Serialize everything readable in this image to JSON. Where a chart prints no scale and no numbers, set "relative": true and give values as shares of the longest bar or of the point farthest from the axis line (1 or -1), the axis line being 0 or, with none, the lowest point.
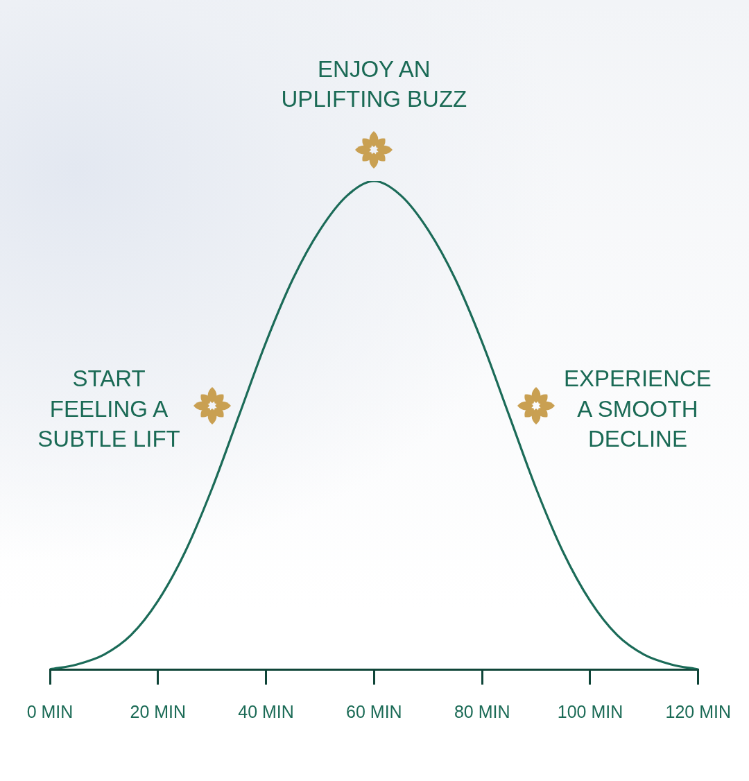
{
  "chart_data": {
    "type": "line",
    "relative": true,
    "x": [
      0,
      5,
      10,
      15,
      20,
      25,
      30,
      35,
      40,
      45,
      50,
      55,
      60,
      65,
      70,
      75,
      80,
      85,
      90,
      95,
      100,
      105,
      110,
      115,
      120
    ],
    "series": [
      {
        "color": "#1b6b58",
        "values": [
          0,
          0.01,
          0.03,
          0.07,
          0.14,
          0.24,
          0.37,
          0.52,
          0.67,
          0.8,
          0.9,
          0.97,
          1,
          0.97,
          0.9,
          0.8,
          0.67,
          0.52,
          0.37,
          0.24,
          0.14,
          0.07,
          0.03,
          0.01,
          0
        ]
      }
    ],
    "xlim": [
      0,
      120
    ],
    "xticks": [
      {
        "value": 0,
        "label": "0 MIN"
      },
      {
        "value": 20,
        "label": "20 MIN"
      },
      {
        "value": 40,
        "label": "40 MIN"
      },
      {
        "value": 60,
        "label": "60 MIN"
      },
      {
        "value": 80,
        "label": "80 MIN"
      },
      {
        "value": 100,
        "label": "100 MIN"
      },
      {
        "value": 120,
        "label": "120 MIN"
      }
    ],
    "annotations": [
      "START FEELING A SUBTLE LIFT",
      "ENJOY AN UPLIFTING BUZZ",
      "EXPERIENCE A SMOOTH DECLINE"
    ]
  }
}
